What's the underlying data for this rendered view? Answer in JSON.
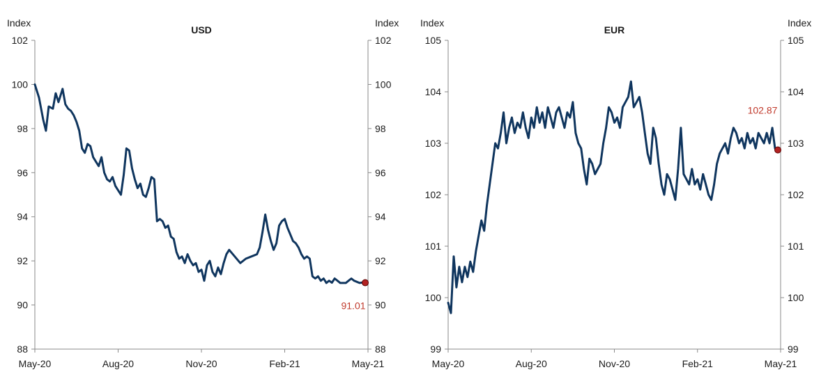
{
  "colors": {
    "series": "#0f355e",
    "end_marker": "#b22222",
    "end_label": "#c0392b"
  },
  "chart_data": [
    {
      "type": "line",
      "title": "USD",
      "ylabel_left": "Index",
      "ylabel_right": "Index",
      "ylim": [
        88,
        102
      ],
      "yticks": [
        88,
        90,
        92,
        94,
        96,
        98,
        100,
        102
      ],
      "xlim": [
        0,
        12
      ],
      "xticks": [
        {
          "pos": 0,
          "label": "May-20"
        },
        {
          "pos": 3,
          "label": "Aug-20"
        },
        {
          "pos": 6,
          "label": "Nov-20"
        },
        {
          "pos": 9,
          "label": "Feb-21"
        },
        {
          "pos": 12,
          "label": "May-21"
        }
      ],
      "end_value": 91.01,
      "end_label": "91.01",
      "series": [
        {
          "name": "USD index",
          "x": [
            0,
            0.15,
            0.3,
            0.4,
            0.5,
            0.65,
            0.75,
            0.85,
            1.0,
            1.1,
            1.2,
            1.3,
            1.4,
            1.5,
            1.6,
            1.7,
            1.8,
            1.9,
            2.0,
            2.1,
            2.2,
            2.3,
            2.4,
            2.5,
            2.6,
            2.7,
            2.8,
            2.9,
            3.0,
            3.1,
            3.2,
            3.3,
            3.4,
            3.5,
            3.6,
            3.7,
            3.8,
            3.9,
            4.0,
            4.1,
            4.2,
            4.3,
            4.4,
            4.5,
            4.6,
            4.7,
            4.8,
            4.9,
            5.0,
            5.1,
            5.2,
            5.3,
            5.4,
            5.5,
            5.6,
            5.7,
            5.8,
            5.9,
            6.0,
            6.1,
            6.2,
            6.3,
            6.4,
            6.5,
            6.6,
            6.7,
            6.8,
            6.9,
            7.0,
            7.2,
            7.4,
            7.6,
            7.8,
            8.0,
            8.1,
            8.2,
            8.3,
            8.4,
            8.5,
            8.6,
            8.7,
            8.8,
            8.9,
            9.0,
            9.1,
            9.2,
            9.3,
            9.4,
            9.5,
            9.6,
            9.7,
            9.8,
            9.9,
            10.0,
            10.1,
            10.2,
            10.3,
            10.4,
            10.5,
            10.6,
            10.7,
            10.8,
            10.9,
            11.0,
            11.1,
            11.2,
            11.3,
            11.4,
            11.5,
            11.6,
            11.7,
            11.8,
            11.9
          ],
          "y": [
            100.0,
            99.4,
            98.4,
            97.9,
            99.0,
            98.9,
            99.6,
            99.2,
            99.8,
            99.1,
            98.9,
            98.8,
            98.6,
            98.3,
            97.9,
            97.1,
            96.9,
            97.3,
            97.2,
            96.7,
            96.5,
            96.3,
            96.7,
            96.0,
            95.7,
            95.6,
            95.8,
            95.4,
            95.2,
            95.0,
            95.9,
            97.1,
            97.0,
            96.2,
            95.7,
            95.3,
            95.5,
            95.0,
            94.9,
            95.3,
            95.8,
            95.7,
            93.8,
            93.9,
            93.8,
            93.5,
            93.6,
            93.1,
            93.0,
            92.4,
            92.1,
            92.2,
            91.9,
            92.3,
            92.0,
            91.8,
            91.9,
            91.5,
            91.6,
            91.1,
            91.8,
            92.0,
            91.5,
            91.3,
            91.7,
            91.4,
            91.9,
            92.3,
            92.5,
            92.2,
            91.9,
            92.1,
            92.2,
            92.3,
            92.6,
            93.3,
            94.1,
            93.4,
            92.9,
            92.5,
            92.8,
            93.6,
            93.8,
            93.9,
            93.5,
            93.2,
            92.9,
            92.8,
            92.6,
            92.3,
            92.1,
            92.2,
            92.1,
            91.3,
            91.2,
            91.3,
            91.1,
            91.2,
            91.0,
            91.1,
            91.01,
            91.2,
            91.1,
            91.0,
            91.0,
            91.0,
            91.1,
            91.2,
            91.1,
            91.05,
            91.0,
            91.02,
            91.01
          ]
        }
      ]
    },
    {
      "type": "line",
      "title": "EUR",
      "ylabel_left": "Index",
      "ylabel_right": "Index",
      "ylim": [
        99,
        105
      ],
      "yticks": [
        99,
        100,
        101,
        102,
        103,
        104,
        105
      ],
      "xlim": [
        0,
        12
      ],
      "xticks": [
        {
          "pos": 0,
          "label": "May-20"
        },
        {
          "pos": 3,
          "label": "Aug-20"
        },
        {
          "pos": 6,
          "label": "Nov-20"
        },
        {
          "pos": 9,
          "label": "Feb-21"
        },
        {
          "pos": 12,
          "label": "May-21"
        }
      ],
      "end_value": 102.87,
      "end_label": "102.87",
      "series": [
        {
          "name": "EUR index",
          "x": [
            0,
            0.1,
            0.2,
            0.3,
            0.4,
            0.5,
            0.6,
            0.7,
            0.8,
            0.9,
            1.0,
            1.1,
            1.2,
            1.3,
            1.4,
            1.5,
            1.6,
            1.7,
            1.8,
            1.9,
            2.0,
            2.1,
            2.2,
            2.3,
            2.4,
            2.5,
            2.6,
            2.7,
            2.8,
            2.9,
            3.0,
            3.1,
            3.2,
            3.3,
            3.4,
            3.5,
            3.6,
            3.7,
            3.8,
            3.9,
            4.0,
            4.1,
            4.2,
            4.3,
            4.4,
            4.5,
            4.6,
            4.7,
            4.8,
            4.9,
            5.0,
            5.1,
            5.2,
            5.3,
            5.4,
            5.5,
            5.6,
            5.7,
            5.8,
            5.9,
            6.0,
            6.1,
            6.2,
            6.3,
            6.4,
            6.5,
            6.6,
            6.7,
            6.8,
            6.9,
            7.0,
            7.1,
            7.2,
            7.3,
            7.4,
            7.5,
            7.6,
            7.7,
            7.8,
            7.9,
            8.0,
            8.1,
            8.2,
            8.3,
            8.4,
            8.5,
            8.6,
            8.7,
            8.8,
            8.9,
            9.0,
            9.1,
            9.2,
            9.3,
            9.4,
            9.5,
            9.6,
            9.7,
            9.8,
            9.9,
            10.0,
            10.1,
            10.2,
            10.3,
            10.4,
            10.5,
            10.6,
            10.7,
            10.8,
            10.9,
            11.0,
            11.1,
            11.2,
            11.3,
            11.4,
            11.5,
            11.6,
            11.7,
            11.8,
            11.9
          ],
          "y": [
            99.9,
            99.7,
            100.8,
            100.2,
            100.6,
            100.3,
            100.6,
            100.4,
            100.7,
            100.5,
            100.9,
            101.2,
            101.5,
            101.3,
            101.8,
            102.2,
            102.6,
            103.0,
            102.9,
            103.2,
            103.6,
            103.0,
            103.3,
            103.5,
            103.2,
            103.4,
            103.3,
            103.6,
            103.3,
            103.1,
            103.5,
            103.3,
            103.7,
            103.4,
            103.6,
            103.3,
            103.7,
            103.5,
            103.3,
            103.6,
            103.7,
            103.5,
            103.3,
            103.6,
            103.5,
            103.8,
            103.2,
            103.0,
            102.9,
            102.5,
            102.2,
            102.7,
            102.6,
            102.4,
            102.5,
            102.6,
            103.0,
            103.3,
            103.7,
            103.6,
            103.4,
            103.5,
            103.3,
            103.7,
            103.8,
            103.9,
            104.2,
            103.7,
            103.8,
            103.9,
            103.6,
            103.2,
            102.8,
            102.6,
            103.3,
            103.1,
            102.6,
            102.2,
            102.0,
            102.4,
            102.3,
            102.1,
            101.9,
            102.5,
            103.3,
            102.4,
            102.3,
            102.2,
            102.5,
            102.2,
            102.3,
            102.1,
            102.4,
            102.2,
            102.0,
            101.9,
            102.2,
            102.6,
            102.8,
            102.9,
            103.0,
            102.8,
            103.1,
            103.3,
            103.2,
            103.0,
            103.1,
            102.9,
            103.2,
            103.0,
            103.1,
            102.9,
            103.2,
            103.1,
            103.0,
            103.2,
            103.0,
            103.3,
            102.9,
            102.87
          ]
        }
      ]
    }
  ]
}
